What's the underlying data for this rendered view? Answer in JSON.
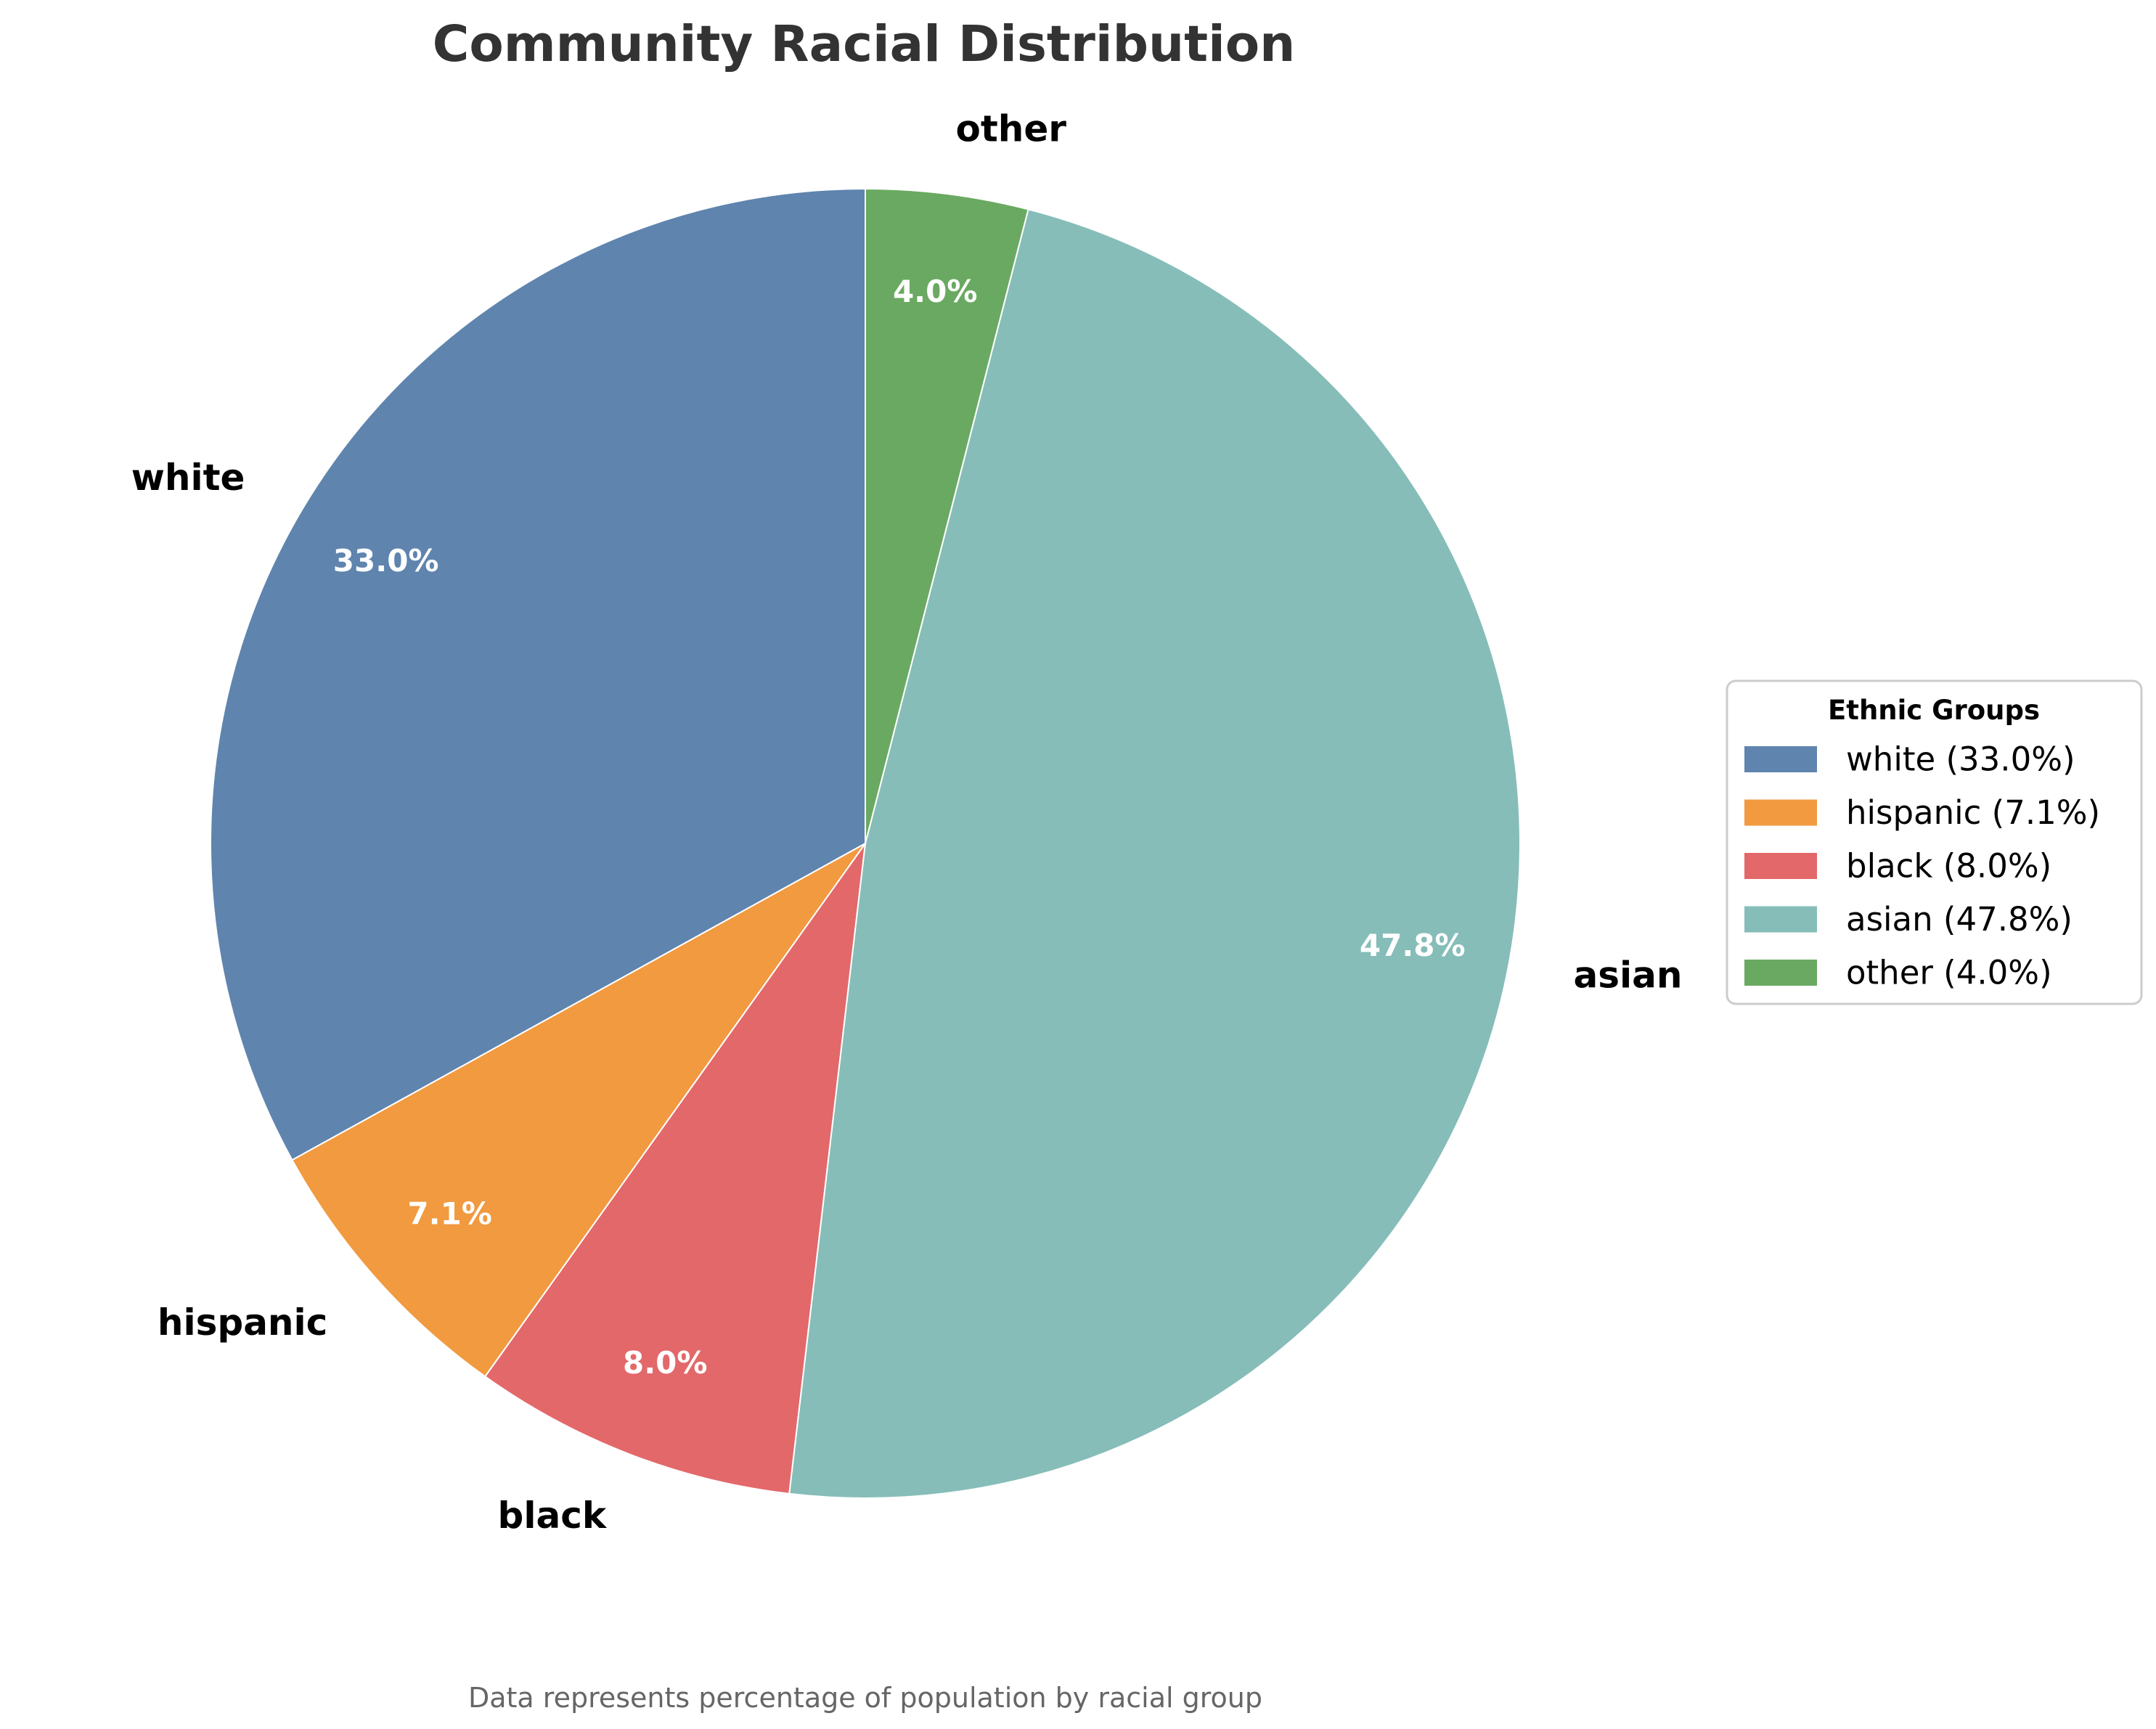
{
  "chart_data": {
    "type": "pie",
    "title": "Community Racial Distribution",
    "footnote": "Data represents percentage of population by racial group",
    "categories": [
      "white",
      "hispanic",
      "black",
      "asian",
      "other"
    ],
    "values": [
      33.0,
      7.1,
      8.0,
      47.8,
      4.0
    ],
    "percent_labels": [
      "33.0%",
      "7.1%",
      "8.0%",
      "47.8%",
      "4.0%"
    ],
    "colors": [
      "#5f84ae",
      "#f19a40",
      "#e3686a",
      "#86bdb8",
      "#6aa961"
    ],
    "start_angle_deg": 90,
    "direction": "counterclockwise",
    "legend": {
      "title": "Ethnic Groups",
      "placement": "right",
      "entries": [
        "white (33.0%)",
        "hispanic (7.1%)",
        "black (8.0%)",
        "asian (47.8%)",
        "other (4.0%)"
      ]
    }
  }
}
